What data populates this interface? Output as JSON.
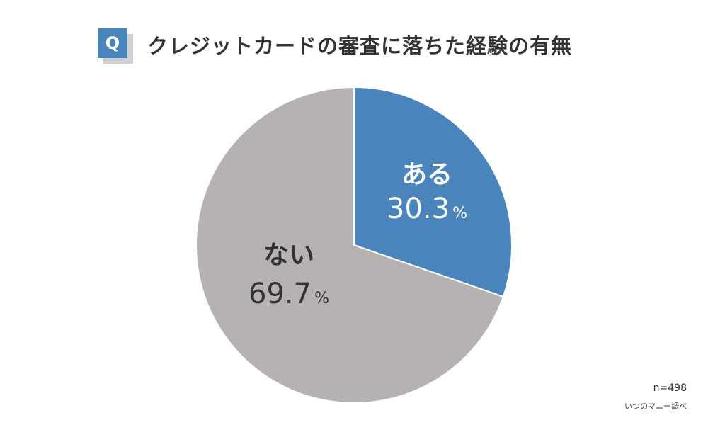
{
  "question_badge": "Q",
  "title": "クレジットカードの審査に落ちた経験の有無",
  "chart_data": {
    "type": "pie",
    "title": "クレジットカードの審査に落ちた経験の有無",
    "slices": [
      {
        "label": "ある",
        "value": 30.3,
        "value_text": "30.3",
        "unit": "%",
        "color": "#4a84bd",
        "text_color": "#ffffff"
      },
      {
        "label": "ない",
        "value": 69.7,
        "value_text": "69.7",
        "unit": "%",
        "color": "#b6b2b2",
        "text_color": "#333333"
      }
    ],
    "start_angle": "12 o'clock",
    "direction": "clockwise"
  },
  "footer": {
    "sample_size": "n=498",
    "source": "いつのマニー調べ"
  }
}
